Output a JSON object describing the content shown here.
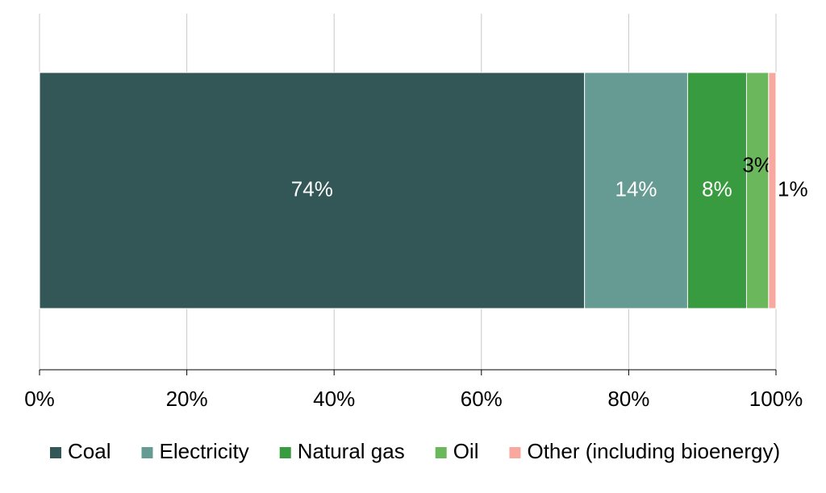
{
  "chart_data": {
    "type": "stacked-bar-horizontal",
    "categories": [
      null
    ],
    "series": [
      {
        "name": "Coal",
        "color": "#335757",
        "values": [
          74
        ],
        "value_labels": [
          "74%"
        ]
      },
      {
        "name": "Electricity",
        "color": "#669b93",
        "values": [
          14
        ],
        "value_labels": [
          "14%"
        ]
      },
      {
        "name": "Natural gas",
        "color": "#399b3f",
        "values": [
          8
        ],
        "value_labels": [
          "8%"
        ]
      },
      {
        "name": "Oil",
        "color": "#6ab85b",
        "values": [
          3
        ],
        "value_labels": [
          "3%"
        ]
      },
      {
        "name": "Other (including bioenergy)",
        "color": "#f9a8a0",
        "values": [
          1
        ],
        "value_labels": [
          "1%"
        ]
      }
    ],
    "xlim": [
      0,
      100
    ],
    "xticks": [
      {
        "value": 0,
        "label": "0%"
      },
      {
        "value": 20,
        "label": "20%"
      },
      {
        "value": 40,
        "label": "40%"
      },
      {
        "value": 60,
        "label": "60%"
      },
      {
        "value": 80,
        "label": "80%"
      },
      {
        "value": 100,
        "label": "100%"
      }
    ],
    "grid": true,
    "legend": "bottom"
  }
}
